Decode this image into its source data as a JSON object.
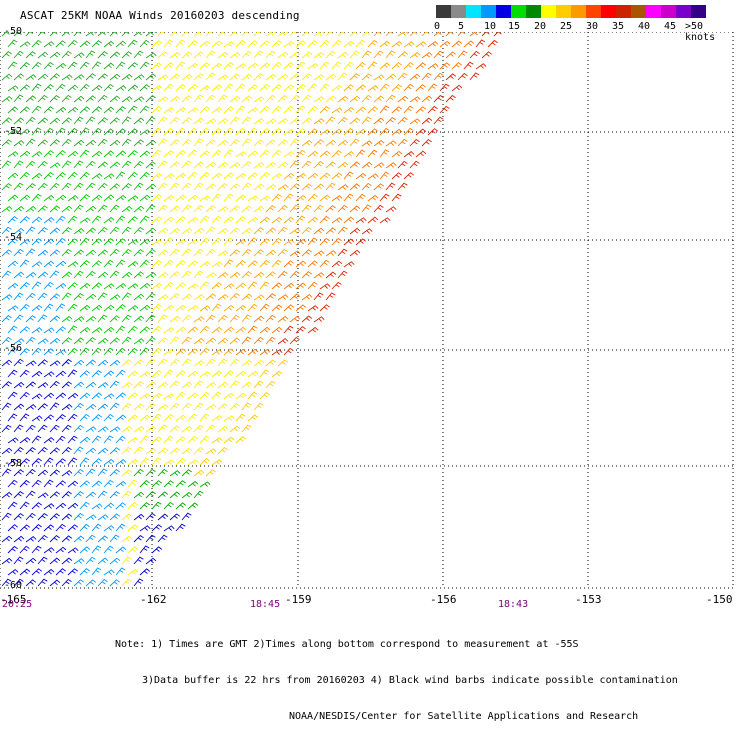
{
  "title": "ASCAT 25KM NOAA Winds 20160203 descending",
  "legend": {
    "colors": [
      "#3a3a3a",
      "#8a8a8a",
      "#00e5ff",
      "#0099ff",
      "#0000e0",
      "#00dd00",
      "#008800",
      "#ffff00",
      "#ffcc00",
      "#ff9900",
      "#ff4400",
      "#ff0000",
      "#cc2200",
      "#aa5500",
      "#ff00ff",
      "#cc00cc",
      "#7a00cc",
      "#330088"
    ],
    "labels": [
      "0",
      "5",
      "10",
      "15",
      "20",
      "25",
      "30",
      "35",
      "40",
      "45",
      ">50 knots"
    ]
  },
  "lat_labels": [
    "-50",
    "-52",
    "-54",
    "-56",
    "-58",
    "-60"
  ],
  "lon_labels": [
    "-165",
    "-162",
    "-159",
    "-156",
    "-153",
    "-150"
  ],
  "time_labels": [
    "20:25",
    "18:45",
    "18:43"
  ],
  "notes": [
    "Note: 1) Times are GMT 2)Times along bottom correspond to measurement at -55S",
    "3)Data buffer is 22 hrs from 20160203 4) Black wind barbs indicate possible contamination",
    "NOAA/NESDIS/Center for Satellite Applications and Research"
  ]
}
